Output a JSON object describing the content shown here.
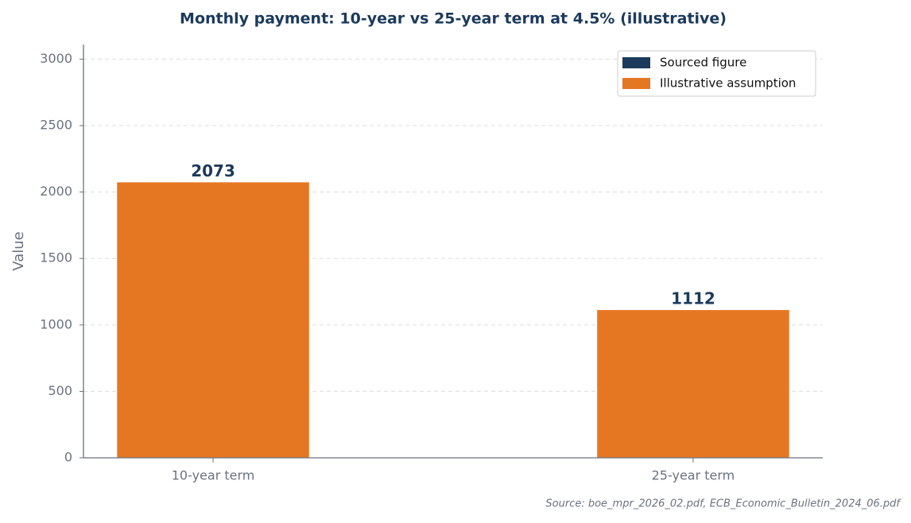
{
  "chart_data": {
    "type": "bar",
    "title": "Monthly payment: 10-year vs 25-year term at 4.5% (illustrative)",
    "y_label": "Value",
    "source": "Source: boe_mpr_2026_02.pdf, ECB_Economic_Bulletin_2024_06.pdf",
    "categories": [
      "10-year term",
      "25-year term"
    ],
    "series": [
      {
        "name": "Sourced figure",
        "color": "#1b3a5c",
        "values": [
          null,
          null
        ]
      },
      {
        "name": "Illustrative assumption",
        "color": "#e67722",
        "values": [
          2073,
          1112
        ]
      }
    ],
    "ylim": [
      0,
      3110
    ],
    "yticks": [
      0,
      500,
      1000,
      1500,
      2000,
      2500,
      3000
    ],
    "grid": true,
    "legend": "upper right"
  }
}
